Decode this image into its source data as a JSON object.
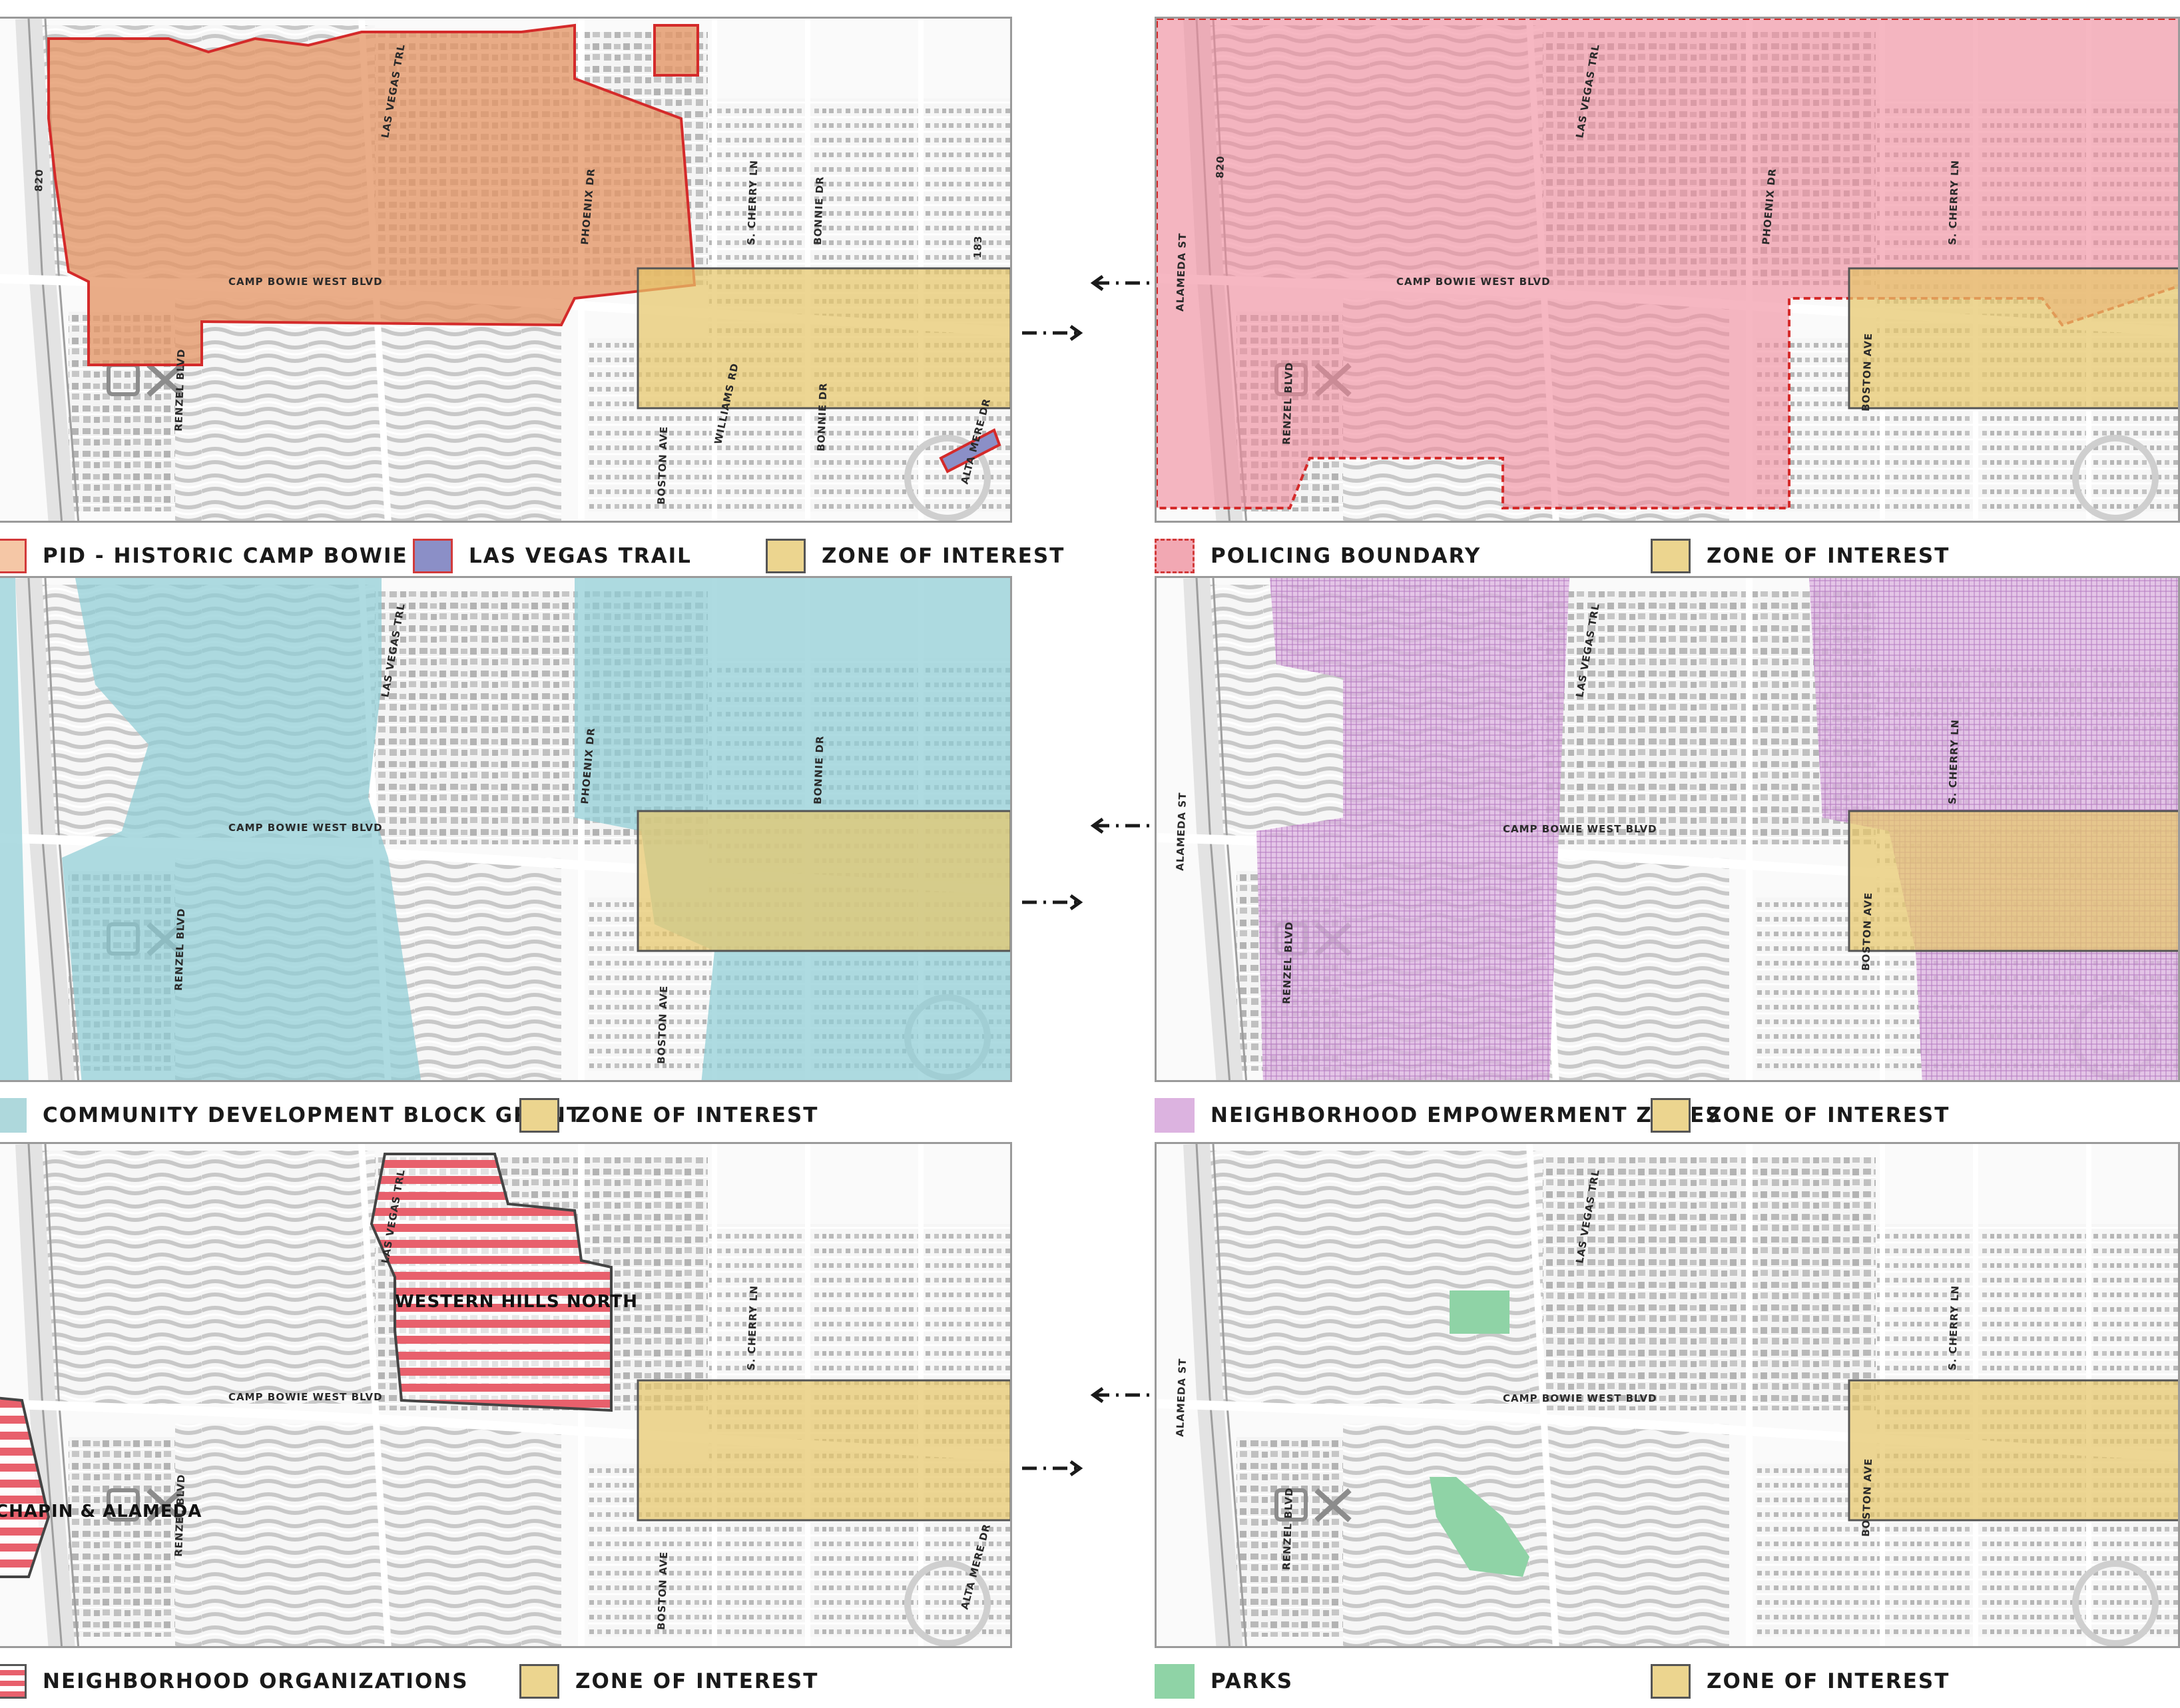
{
  "streets": {
    "camp_bowie": "CAMP BOWIE WEST BLVD",
    "las_vegas_trl": "LAS VEGAS TRL",
    "phoenix_dr": "PHOENIX DR",
    "cherry_ln": "S. CHERRY LN",
    "bonnie_dr": "BONNIE DR",
    "boston_ave": "BOSTON AVE",
    "williams_rd": "WILLIAMS RD",
    "alta_mere_dr": "ALTA MERE DR",
    "renzel_blvd": "RENZEL BLVD",
    "alameda_st": "ALAMEDA ST",
    "i820": "820",
    "r183": "183"
  },
  "panels": [
    {
      "id": "pid",
      "legend": [
        {
          "label": "PID - HISTORIC CAMP BOWIE",
          "swatch_fill": "#f5c7a6",
          "swatch_border": "#d23a3a"
        },
        {
          "label": "LAS VEGAS TRAIL",
          "swatch_fill": "#8b8fc7",
          "swatch_border": "#d23a3a"
        },
        {
          "label": "ZONE OF INTEREST",
          "swatch_fill": "#ecd58f",
          "swatch_border": "#555555"
        }
      ]
    },
    {
      "id": "policing",
      "legend": [
        {
          "label": "POLICING BOUNDARY",
          "swatch_fill": "#f2a8b3",
          "swatch_border": "#d23a3a"
        },
        {
          "label": "ZONE OF INTEREST",
          "swatch_fill": "#ecd58f",
          "swatch_border": "#555555"
        }
      ]
    },
    {
      "id": "cdbg",
      "legend": [
        {
          "label": "COMMUNITY DEVELOPMENT BLOCK GRANT",
          "swatch_fill": "#aed8dc",
          "swatch_border": "#aed8dc"
        },
        {
          "label": "ZONE OF INTEREST",
          "swatch_fill": "#ecd58f",
          "swatch_border": "#555555"
        }
      ]
    },
    {
      "id": "nez",
      "legend": [
        {
          "label": "NEIGHBORHOOD EMPOWERMENT ZONES",
          "swatch_fill": "#dcb3e0",
          "swatch_border": "#dcb3e0"
        },
        {
          "label": "ZONE OF INTEREST",
          "swatch_fill": "#ecd58f",
          "swatch_border": "#555555"
        }
      ]
    },
    {
      "id": "orgs",
      "legend": [
        {
          "label": "NEIGHBORHOOD ORGANIZATIONS",
          "swatch_fill": "#e8606c",
          "swatch_border": "#555555"
        },
        {
          "label": "ZONE OF INTEREST",
          "swatch_fill": "#ecd58f",
          "swatch_border": "#555555"
        }
      ],
      "areas": {
        "western_hills_north": "WESTERN HILLS NORTH",
        "chapin_alameda": "CHAPIN & ALAMEDA"
      }
    },
    {
      "id": "parks",
      "legend": [
        {
          "label": "PARKS",
          "swatch_fill": "#8fd3a6",
          "swatch_border": "#8fd3a6"
        },
        {
          "label": "ZONE OF INTEREST",
          "swatch_fill": "#ecd58f",
          "swatch_border": "#555555"
        }
      ]
    }
  ]
}
